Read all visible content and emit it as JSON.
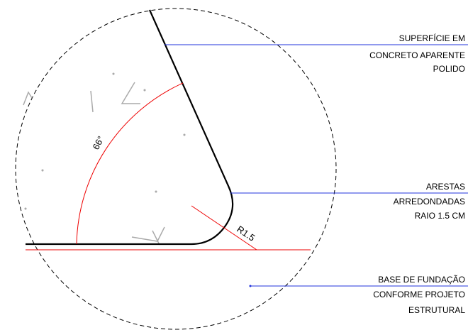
{
  "annotations": [
    {
      "lines": [
        "SUPERFÍCIE EM",
        "CONCRETO APARENTE",
        "POLIDO"
      ]
    },
    {
      "lines": [
        "ARESTAS",
        "ARREDONDADAS",
        "RAIO 1.5 CM"
      ]
    },
    {
      "lines": [
        "BASE DE FUNDAÇÃO",
        "CONFORME PROJETO",
        "ESTRUTURAL"
      ]
    }
  ],
  "dimensions": {
    "angle": "66°",
    "radius": "R1.5"
  }
}
